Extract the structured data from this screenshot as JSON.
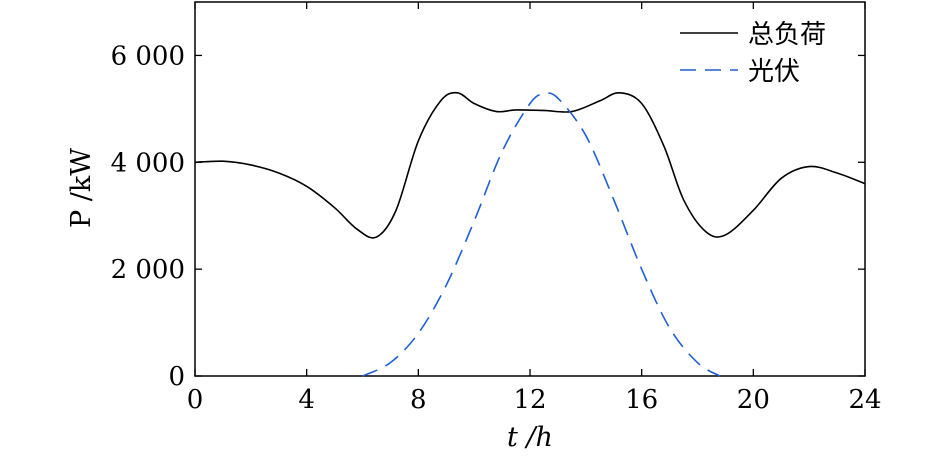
{
  "chart_data": {
    "type": "line",
    "title": "",
    "xlabel": "t /h",
    "ylabel": "P /kW",
    "xlim": [
      0,
      24
    ],
    "ylim": [
      0,
      7000
    ],
    "xticks": [
      0,
      4,
      8,
      12,
      16,
      20,
      24
    ],
    "xtick_labels": [
      "0",
      "4",
      "8",
      "12",
      "16",
      "20",
      "24"
    ],
    "yticks": [
      0,
      2000,
      4000,
      6000
    ],
    "ytick_labels": [
      "0",
      "2 000",
      "4 000",
      "6 000"
    ],
    "grid": false,
    "legend_position": "top-right",
    "series": [
      {
        "name": "总负荷",
        "color": "#000000",
        "style": "solid",
        "x": [
          0,
          1,
          2,
          3,
          4,
          5,
          5.8,
          6.5,
          7.2,
          8,
          8.8,
          9.4,
          10,
          10.8,
          11.5,
          12.5,
          13.5,
          14.5,
          15.2,
          16,
          16.8,
          17.5,
          18.3,
          19,
          20,
          21,
          22,
          23,
          24
        ],
        "y": [
          4000,
          4020,
          3950,
          3800,
          3550,
          3150,
          2750,
          2600,
          3100,
          4400,
          5150,
          5300,
          5100,
          4950,
          4980,
          4970,
          4950,
          5150,
          5300,
          5100,
          4300,
          3300,
          2700,
          2640,
          3100,
          3700,
          3920,
          3800,
          3600
        ]
      },
      {
        "name": "光伏",
        "color": "#1f5fd6",
        "style": "dashed",
        "x": [
          6,
          7,
          8,
          9,
          10,
          11,
          12,
          12.5,
          13,
          14,
          15,
          16,
          17,
          18,
          18.8
        ],
        "y": [
          0,
          250,
          800,
          1700,
          2900,
          4200,
          5100,
          5280,
          5200,
          4500,
          3300,
          2000,
          900,
          250,
          0
        ]
      }
    ]
  }
}
